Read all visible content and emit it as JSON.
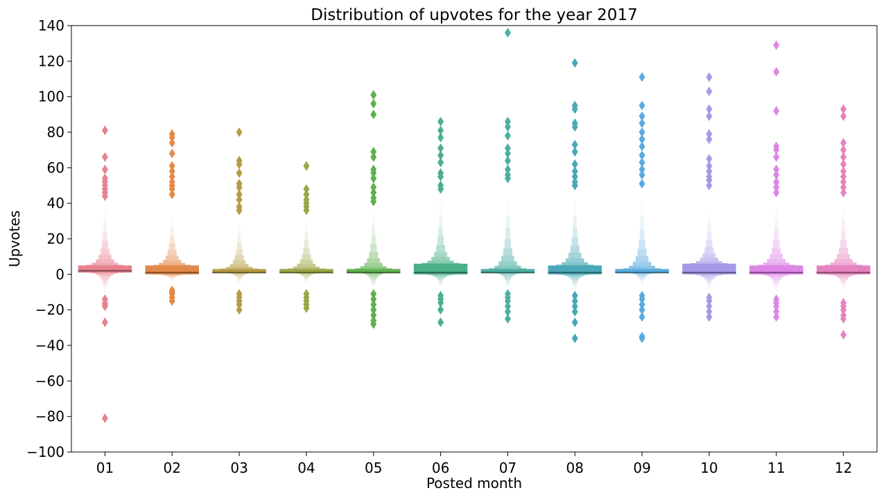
{
  "chart_data": {
    "type": "boxen",
    "title": "Distribution of upvotes for the year 2017",
    "xlabel": "Posted month",
    "ylabel": "Upvotes",
    "ylim": [
      -100,
      140
    ],
    "yticks": [
      -100,
      -80,
      -60,
      -40,
      -20,
      0,
      20,
      40,
      60,
      80,
      100,
      120,
      140
    ],
    "ytick_labels": [
      "−100",
      "−80",
      "−60",
      "−40",
      "−20",
      "0",
      "20",
      "40",
      "60",
      "80",
      "100",
      "120",
      "140"
    ],
    "categories": [
      "01",
      "02",
      "03",
      "04",
      "05",
      "06",
      "07",
      "08",
      "09",
      "10",
      "11",
      "12"
    ],
    "colors": [
      "#e8828f",
      "#e28a4a",
      "#b89a45",
      "#9ca545",
      "#5fb14d",
      "#4bb08a",
      "#4daea3",
      "#4aa8b8",
      "#5aaae0",
      "#a59ae8",
      "#de86e8",
      "#e583bf"
    ],
    "series": [
      {
        "category": "01",
        "median": 2,
        "q1": 1,
        "q3": 5,
        "upper": 36,
        "lower": -10,
        "outliers": [
          81,
          66,
          59,
          54,
          52,
          50,
          48,
          46,
          44,
          -14,
          -16,
          -17,
          -18,
          -27,
          -81
        ]
      },
      {
        "category": "02",
        "median": 1,
        "q1": 0,
        "q3": 5,
        "upper": 33,
        "lower": -4,
        "outliers": [
          79,
          77,
          74,
          68,
          61,
          58,
          55,
          52,
          50,
          48,
          45,
          -9,
          -10,
          -11,
          -13,
          -15
        ]
      },
      {
        "category": "03",
        "median": 1,
        "q1": 1,
        "q3": 3,
        "upper": 28,
        "lower": -5,
        "outliers": [
          80,
          64,
          62,
          57,
          51,
          49,
          45,
          42,
          38,
          36,
          -11,
          -13,
          -15,
          -17,
          -20
        ]
      },
      {
        "category": "04",
        "median": 1,
        "q1": 1,
        "q3": 3,
        "upper": 30,
        "lower": -5,
        "outliers": [
          61,
          48,
          45,
          42,
          40,
          38,
          36,
          -11,
          -13,
          -15,
          -17,
          -19
        ]
      },
      {
        "category": "05",
        "median": 1,
        "q1": 1,
        "q3": 3,
        "upper": 34,
        "lower": -8,
        "outliers": [
          101,
          96,
          90,
          69,
          66,
          59,
          57,
          54,
          49,
          46,
          43,
          41,
          -11,
          -14,
          -17,
          -20,
          -23,
          -26,
          -28
        ]
      },
      {
        "category": "06",
        "median": 1,
        "q1": 0,
        "q3": 6,
        "upper": 40,
        "lower": -7,
        "outliers": [
          86,
          81,
          77,
          71,
          67,
          63,
          57,
          55,
          50,
          48,
          -12,
          -14,
          -16,
          -20,
          -27
        ]
      },
      {
        "category": "07",
        "median": 1,
        "q1": 1,
        "q3": 3,
        "upper": 41,
        "lower": -8,
        "outliers": [
          136,
          86,
          83,
          78,
          71,
          68,
          64,
          59,
          56,
          54,
          -11,
          -13,
          -15,
          -18,
          -21,
          -25
        ]
      },
      {
        "category": "08",
        "median": 1,
        "q1": 0,
        "q3": 5,
        "upper": 41,
        "lower": -9,
        "outliers": [
          119,
          95,
          93,
          85,
          83,
          73,
          69,
          62,
          58,
          55,
          52,
          50,
          -12,
          -15,
          -18,
          -21,
          -27,
          -36
        ]
      },
      {
        "category": "09",
        "median": 1,
        "q1": 1,
        "q3": 3,
        "upper": 40,
        "lower": -6,
        "outliers": [
          111,
          95,
          89,
          85,
          80,
          76,
          72,
          67,
          63,
          59,
          56,
          51,
          -12,
          -14,
          -17,
          -20,
          -24,
          -35,
          -36
        ]
      },
      {
        "category": "10",
        "median": 1,
        "q1": 0,
        "q3": 6,
        "upper": 36,
        "lower": -9,
        "outliers": [
          111,
          103,
          93,
          89,
          79,
          76,
          65,
          61,
          58,
          55,
          53,
          50,
          -13,
          -15,
          -18,
          -21,
          -24
        ]
      },
      {
        "category": "11",
        "median": 1,
        "q1": 0,
        "q3": 5,
        "upper": 38,
        "lower": -10,
        "outliers": [
          129,
          114,
          92,
          72,
          70,
          66,
          59,
          56,
          52,
          49,
          46,
          -14,
          -16,
          -18,
          -21,
          -24
        ]
      },
      {
        "category": "12",
        "median": 1,
        "q1": 0,
        "q3": 5,
        "upper": 37,
        "lower": -9,
        "outliers": [
          93,
          89,
          74,
          70,
          66,
          62,
          58,
          55,
          52,
          49,
          46,
          -16,
          -18,
          -20,
          -23,
          -25,
          -34
        ]
      }
    ]
  }
}
